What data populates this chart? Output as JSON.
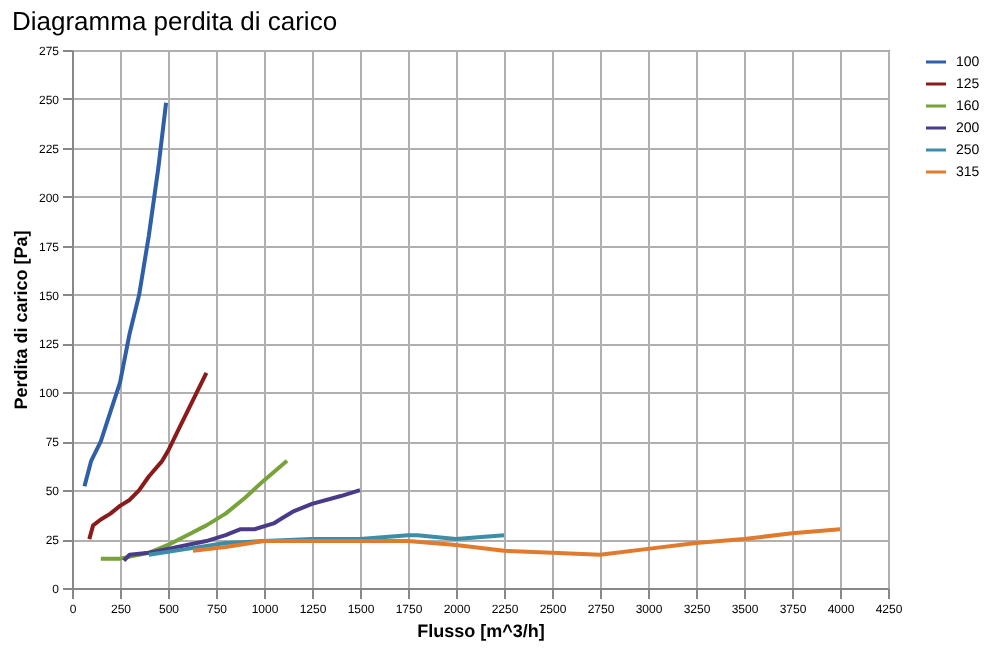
{
  "chart_data": {
    "type": "line",
    "title": "Diagramma perdita di carico",
    "xlabel": "Flusso [m^3/h]",
    "ylabel": "Perdita di carico [Pa]",
    "xlim": [
      0,
      4250
    ],
    "xticks": [
      0,
      250,
      500,
      750,
      1000,
      1250,
      1500,
      1750,
      2000,
      2250,
      2500,
      2750,
      3000,
      3250,
      3500,
      3750,
      4000,
      4250
    ],
    "ylim": [
      0,
      275
    ],
    "yticks": [
      0,
      25,
      50,
      75,
      100,
      125,
      150,
      175,
      200,
      225,
      250,
      275
    ],
    "grid": true,
    "legend": "right",
    "marker": "none",
    "line_style": "solid",
    "series": [
      {
        "name": "100",
        "color": "#2f5fa8",
        "x": [
          65,
          100,
          150,
          200,
          250,
          300,
          350,
          400,
          450,
          490
        ],
        "values": [
          52,
          65,
          75,
          90,
          105,
          130,
          150,
          180,
          215,
          248
        ]
      },
      {
        "name": "125",
        "color": "#8b1a1a",
        "x": [
          90,
          110,
          150,
          200,
          250,
          300,
          350,
          400,
          470,
          500,
          550,
          600,
          650,
          700
        ],
        "values": [
          25,
          32,
          35,
          38,
          42,
          45,
          50,
          57,
          65,
          70,
          80,
          90,
          100,
          110
        ]
      },
      {
        "name": "160",
        "color": "#77a33a",
        "x": [
          150,
          250,
          400,
          500,
          600,
          700,
          800,
          900,
          1000,
          1120
        ],
        "values": [
          15,
          15,
          18,
          22,
          27,
          32,
          38,
          46,
          55,
          65
        ]
      },
      {
        "name": "200",
        "color": "#4b3a8a",
        "x": [
          270,
          300,
          400,
          500,
          600,
          700,
          800,
          875,
          950,
          1050,
          1100,
          1150,
          1250,
          1400,
          1500
        ],
        "values": [
          14,
          17,
          18,
          20,
          22,
          24,
          27,
          30,
          30,
          33,
          36,
          39,
          43,
          47,
          50
        ]
      },
      {
        "name": "250",
        "color": "#3c8ea8",
        "x": [
          400,
          600,
          800,
          1000,
          1250,
          1500,
          1750,
          1800,
          2000,
          2250
        ],
        "values": [
          17,
          20,
          23,
          24,
          25,
          25,
          27,
          27,
          25,
          27
        ]
      },
      {
        "name": "315",
        "color": "#e07a2c",
        "x": [
          630,
          800,
          1000,
          1250,
          1500,
          1750,
          2000,
          2250,
          2500,
          2750,
          3000,
          3250,
          3500,
          3750,
          4000
        ],
        "values": [
          19,
          21,
          24,
          24,
          24,
          24,
          22,
          19,
          18,
          17,
          20,
          23,
          25,
          28,
          30
        ]
      }
    ]
  }
}
